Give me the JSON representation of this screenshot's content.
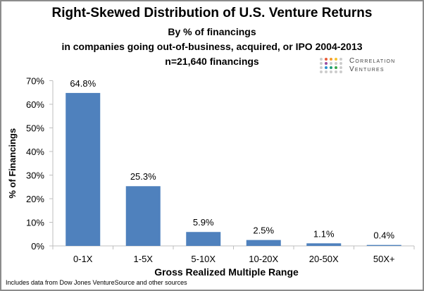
{
  "chart_data": {
    "type": "bar",
    "title": "Right-Skewed Distribution of U.S. Venture Returns",
    "subtitle": [
      "By % of financings",
      "in companies going out-of-business, acquired, or IPO 2004-2013",
      "n=21,640 financings"
    ],
    "xlabel": "Gross Realized Multiple Range",
    "ylabel": "% of Financings",
    "categories": [
      "0-1X",
      "1-5X",
      "5-10X",
      "10-20X",
      "20-50X",
      "50X+"
    ],
    "values": [
      64.8,
      25.3,
      5.9,
      2.5,
      1.1,
      0.4
    ],
    "data_labels": [
      "64.8%",
      "25.3%",
      "5.9%",
      "2.5%",
      "1.1%",
      "0.4%"
    ],
    "ylim": [
      0,
      70
    ],
    "yticks": [
      "0%",
      "10%",
      "20%",
      "30%",
      "40%",
      "50%",
      "60%",
      "70%"
    ],
    "grid": false,
    "bar_color": "#4f81bd"
  },
  "logo": {
    "line1": "Correlation",
    "line2": "Ventures"
  },
  "source_note": "Includes data from Dow Jones VentureSource and other sources"
}
